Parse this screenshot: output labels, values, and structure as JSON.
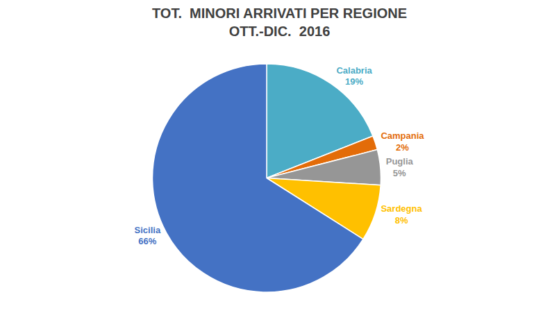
{
  "chart_data": {
    "type": "pie",
    "title": "TOT.  MINORI ARRIVATI PER REGIONE",
    "subtitle": "OTT.-DIC.  2016",
    "categories": [
      "Calabria",
      "Campania",
      "Puglia",
      "Sardegna",
      "Sicilia"
    ],
    "values": [
      19,
      2,
      5,
      8,
      66
    ],
    "value_labels": [
      "19%",
      "2%",
      "5%",
      "8%",
      "66%"
    ],
    "colors": [
      "#4BACC6",
      "#E36C09",
      "#969696",
      "#FFC000",
      "#4472C4"
    ],
    "data_labels": true
  }
}
